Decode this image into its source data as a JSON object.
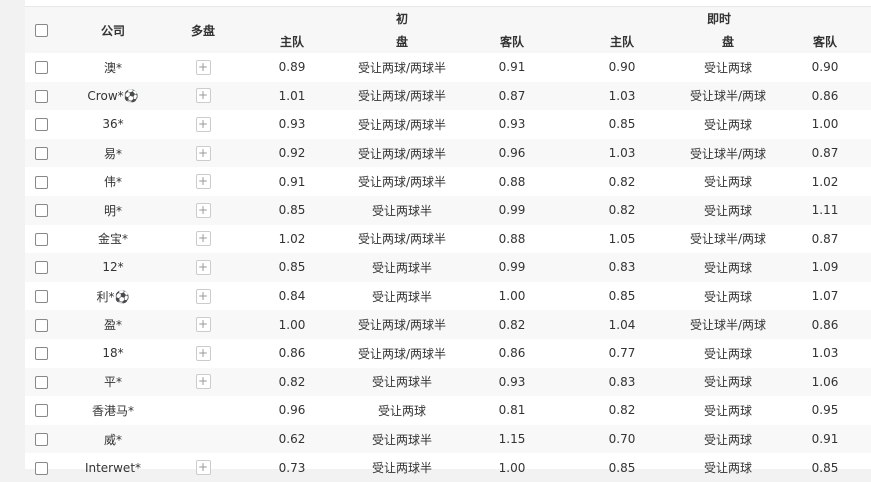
{
  "header": {
    "company": "公司",
    "multi": "多盘",
    "initial": "初",
    "live": "即时",
    "home": "主队",
    "line": "盘",
    "away": "客队"
  },
  "rows": [
    {
      "company": "澳*",
      "multi": true,
      "ih": "0.89",
      "il": "受让两球/两球半",
      "ia": "0.91",
      "lh": "0.90",
      "ll": "受让两球",
      "la": "0.90"
    },
    {
      "company": "Crow*⚽",
      "multi": true,
      "ih": "1.01",
      "il": "受让两球/两球半",
      "ia": "0.87",
      "lh": "1.03",
      "ll": "受让球半/两球",
      "la": "0.86"
    },
    {
      "company": "36*",
      "multi": true,
      "ih": "0.93",
      "il": "受让两球/两球半",
      "ia": "0.93",
      "lh": "0.85",
      "ll": "受让两球",
      "la": "1.00"
    },
    {
      "company": "易*",
      "multi": true,
      "ih": "0.92",
      "il": "受让两球/两球半",
      "ia": "0.96",
      "lh": "1.03",
      "ll": "受让球半/两球",
      "la": "0.87"
    },
    {
      "company": "伟*",
      "multi": true,
      "ih": "0.91",
      "il": "受让两球/两球半",
      "ia": "0.88",
      "lh": "0.82",
      "ll": "受让两球",
      "la": "1.02"
    },
    {
      "company": "明*",
      "multi": true,
      "ih": "0.85",
      "il": "受让两球半",
      "ia": "0.99",
      "lh": "0.82",
      "ll": "受让两球",
      "la": "1.11"
    },
    {
      "company": "金宝*",
      "multi": true,
      "ih": "1.02",
      "il": "受让两球/两球半",
      "ia": "0.88",
      "lh": "1.05",
      "ll": "受让球半/两球",
      "la": "0.87"
    },
    {
      "company": "12*",
      "multi": true,
      "ih": "0.85",
      "il": "受让两球半",
      "ia": "0.99",
      "lh": "0.83",
      "ll": "受让两球",
      "la": "1.09"
    },
    {
      "company": "利*⚽",
      "multi": true,
      "ih": "0.84",
      "il": "受让两球半",
      "ia": "1.00",
      "lh": "0.85",
      "ll": "受让两球",
      "la": "1.07"
    },
    {
      "company": "盈*",
      "multi": true,
      "ih": "1.00",
      "il": "受让两球/两球半",
      "ia": "0.82",
      "lh": "1.04",
      "ll": "受让球半/两球",
      "la": "0.86"
    },
    {
      "company": "18*",
      "multi": true,
      "ih": "0.86",
      "il": "受让两球/两球半",
      "ia": "0.86",
      "lh": "0.77",
      "ll": "受让两球",
      "la": "1.03"
    },
    {
      "company": "平*",
      "multi": true,
      "ih": "0.82",
      "il": "受让两球半",
      "ia": "0.93",
      "lh": "0.83",
      "ll": "受让两球",
      "la": "1.06"
    },
    {
      "company": "香港马*",
      "multi": false,
      "ih": "0.96",
      "il": "受让两球",
      "ia": "0.81",
      "lh": "0.82",
      "ll": "受让两球",
      "la": "0.95"
    },
    {
      "company": "威*",
      "multi": false,
      "ih": "0.62",
      "il": "受让两球半",
      "ia": "1.15",
      "lh": "0.70",
      "ll": "受让两球",
      "la": "0.91"
    },
    {
      "company": "Interwet*",
      "multi": true,
      "ih": "0.73",
      "il": "受让两球半",
      "ia": "1.00",
      "lh": "0.85",
      "ll": "受让两球",
      "la": "0.85"
    }
  ]
}
